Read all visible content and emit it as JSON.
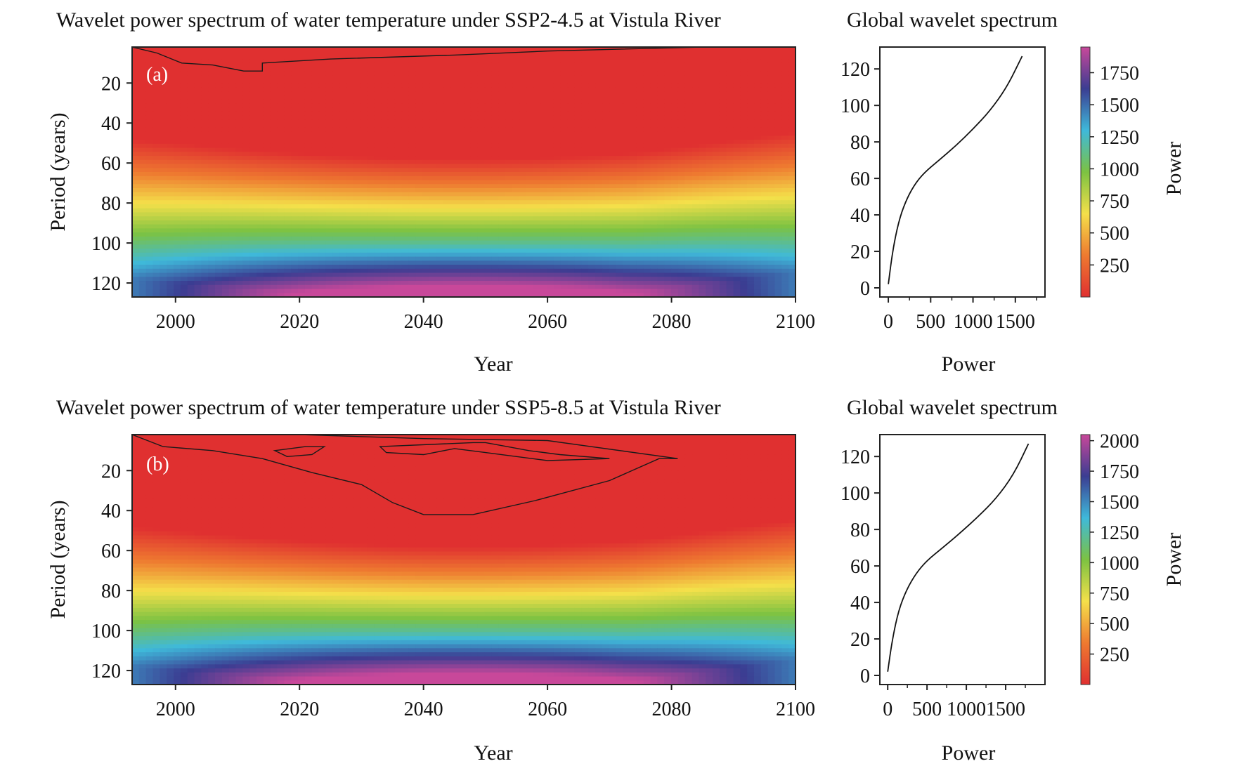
{
  "chart_data": [
    {
      "id": "a",
      "type": "heatmap",
      "panel_label": "(a)",
      "title": "Wavelet power spectrum of water temperature under SSP2-4.5 at Vistula River",
      "xlabel": "Year",
      "ylabel": "Period (years)",
      "xlim": [
        1993,
        2100
      ],
      "ylim": [
        127,
        2
      ],
      "xticks": [
        2000,
        2020,
        2040,
        2060,
        2080,
        2100
      ],
      "yticks": [
        20,
        40,
        60,
        80,
        100,
        120
      ],
      "colorscale": [
        "#e03030",
        "#ee7a30",
        "#f4e04a",
        "#7cc242",
        "#3fb9da",
        "#3b3d92",
        "#c8489a"
      ],
      "max_power": 1950,
      "significance_contour": [
        [
          1993,
          2
        ],
        [
          1997,
          5
        ],
        [
          2001,
          10
        ],
        [
          2006,
          11
        ],
        [
          2011,
          14
        ],
        [
          2014,
          14
        ],
        [
          2014,
          10
        ],
        [
          2025,
          8
        ],
        [
          2045,
          6
        ],
        [
          2060,
          4
        ],
        [
          2085,
          2
        ]
      ],
      "gws": {
        "title": "Global wavelet spectrum",
        "xlabel": "Power",
        "xticks": [
          0,
          500,
          1000,
          1500
        ],
        "xlim": [
          -100,
          1850
        ],
        "yticks": [
          0,
          20,
          40,
          60,
          80,
          100,
          120
        ],
        "ylim": [
          -5,
          132
        ],
        "curve": [
          [
            0,
            2
          ],
          [
            50,
            20
          ],
          [
            120,
            36
          ],
          [
            200,
            47
          ],
          [
            300,
            56
          ],
          [
            420,
            63
          ],
          [
            600,
            70
          ],
          [
            800,
            78
          ],
          [
            1000,
            87
          ],
          [
            1200,
            97
          ],
          [
            1400,
            110
          ],
          [
            1580,
            127
          ]
        ]
      },
      "colorbar": {
        "label": "Power",
        "ticks": [
          250,
          500,
          750,
          1000,
          1250,
          1500,
          1750
        ],
        "max": 1950
      }
    },
    {
      "id": "b",
      "type": "heatmap",
      "panel_label": "(b)",
      "title": "Wavelet power spectrum of water temperature under SSP5-8.5 at Vistula River",
      "xlabel": "Year",
      "ylabel": "Period (years)",
      "xlim": [
        1993,
        2100
      ],
      "ylim": [
        127,
        2
      ],
      "xticks": [
        2000,
        2020,
        2040,
        2060,
        2080,
        2100
      ],
      "yticks": [
        20,
        40,
        60,
        80,
        100,
        120
      ],
      "colorscale": [
        "#e03030",
        "#ee7a30",
        "#f4e04a",
        "#7cc242",
        "#3fb9da",
        "#3b3d92",
        "#c8489a"
      ],
      "max_power": 2050,
      "significance_contour": [
        [
          1993,
          2
        ],
        [
          1998,
          8
        ],
        [
          2006,
          10
        ],
        [
          2014,
          14
        ],
        [
          2022,
          21
        ],
        [
          2030,
          27
        ],
        [
          2035,
          36
        ],
        [
          2040,
          42
        ],
        [
          2048,
          42
        ],
        [
          2058,
          35
        ],
        [
          2070,
          25
        ],
        [
          2078,
          14
        ],
        [
          2081,
          14
        ],
        [
          2060,
          5
        ],
        [
          2040,
          4
        ],
        [
          2020,
          2
        ]
      ],
      "significance_islands": [
        [
          [
            2016,
            10
          ],
          [
            2021,
            8
          ],
          [
            2024,
            8
          ],
          [
            2022,
            12
          ],
          [
            2018,
            13
          ]
        ],
        [
          [
            2033,
            8
          ],
          [
            2048,
            6
          ],
          [
            2050,
            6
          ],
          [
            2057,
            10
          ],
          [
            2062,
            12
          ],
          [
            2070,
            14
          ],
          [
            2060,
            15
          ],
          [
            2050,
            11
          ],
          [
            2045,
            9
          ],
          [
            2040,
            12
          ],
          [
            2034,
            11
          ]
        ]
      ],
      "gws": {
        "title": "Global wavelet spectrum",
        "xlabel": "Power",
        "xticks": [
          0,
          500,
          1000,
          1500
        ],
        "xlim": [
          -100,
          2000
        ],
        "yticks": [
          0,
          20,
          40,
          60,
          80,
          100,
          120
        ],
        "ylim": [
          -5,
          132
        ],
        "curve": [
          [
            0,
            2
          ],
          [
            60,
            20
          ],
          [
            140,
            36
          ],
          [
            240,
            47
          ],
          [
            360,
            56
          ],
          [
            500,
            63
          ],
          [
            700,
            70
          ],
          [
            920,
            78
          ],
          [
            1150,
            87
          ],
          [
            1380,
            97
          ],
          [
            1600,
            110
          ],
          [
            1790,
            127
          ]
        ]
      },
      "colorbar": {
        "label": "Power",
        "ticks": [
          250,
          500,
          750,
          1000,
          1250,
          1500,
          1750,
          2000
        ],
        "max": 2050
      }
    }
  ]
}
